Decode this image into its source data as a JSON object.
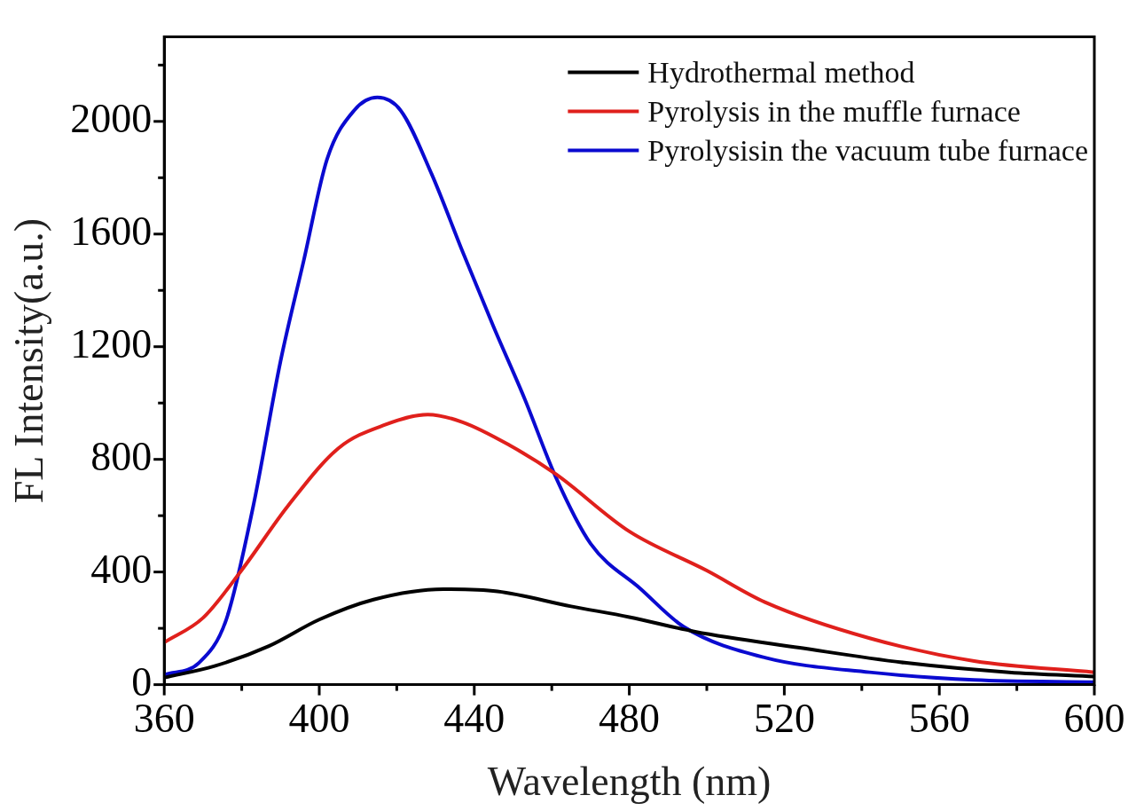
{
  "chart_data": {
    "type": "line",
    "xlabel": "Wavelength (nm)",
    "ylabel": "FL Intensity(a.u.)",
    "xlim": [
      360,
      600
    ],
    "ylim": [
      0,
      2300
    ],
    "xticks": [
      360,
      {
        "value": 380,
        "label": null
      },
      400,
      {
        "value": 420,
        "label": null
      },
      440,
      {
        "value": 460,
        "label": null
      },
      480,
      {
        "value": 500,
        "label": null
      },
      520,
      {
        "value": 540,
        "label": null
      },
      560,
      {
        "value": 580,
        "label": null
      },
      600
    ],
    "yticks": [
      0,
      {
        "value": 200,
        "label": null
      },
      400,
      {
        "value": 600,
        "label": null
      },
      800,
      {
        "value": 1000,
        "label": null
      },
      1200,
      {
        "value": 1400,
        "label": null
      },
      1600,
      {
        "value": 1800,
        "label": null
      },
      2000,
      {
        "value": 2200,
        "label": null
      }
    ],
    "grid": false,
    "legend": "top right",
    "marker": "none",
    "line_style": "solid",
    "series": [
      {
        "name": "Hydrothermal method",
        "color": "#000000",
        "x": [
          360,
          373,
          387,
          400,
          414,
          432,
          446,
          465,
          480,
          497,
          524,
          551,
          578,
          600
        ],
        "values": [
          25,
          66,
          137,
          231,
          302,
          339,
          331,
          278,
          240,
          188,
          131,
          78,
          44,
          29
        ]
      },
      {
        "name": "Pyrolysis in the muffle furnace",
        "color": "#e0201c",
        "x": [
          360,
          370,
          380,
          392,
          405,
          417,
          428,
          437,
          449,
          461,
          480,
          500,
          515,
          542,
          569,
          600
        ],
        "values": [
          150,
          237,
          407,
          636,
          840,
          923,
          959,
          932,
          851,
          748,
          544,
          405,
          293,
          165,
          84,
          44
        ]
      },
      {
        "name": "Pyrolysisin the vacuum tube furnace",
        "color": "#0a0ad0",
        "x": [
          360,
          369,
          376,
          383,
          390,
          396,
          402,
          409,
          415,
          421,
          429,
          437,
          445,
          453,
          461,
          470,
          483,
          494,
          515,
          542,
          569,
          600
        ],
        "values": [
          35,
          78,
          231,
          636,
          1148,
          1506,
          1865,
          2039,
          2085,
          2039,
          1813,
          1537,
          1270,
          1015,
          738,
          501,
          339,
          206,
          96,
          44,
          17,
          9
        ]
      }
    ]
  }
}
